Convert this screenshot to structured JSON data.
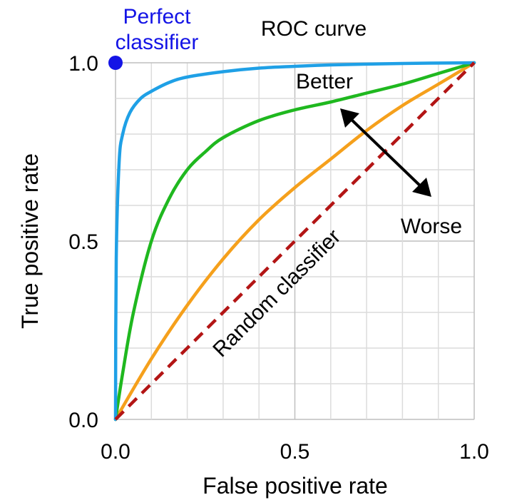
{
  "chart_data": {
    "type": "line",
    "title": "ROC curve",
    "xlabel": "False positive rate",
    "ylabel": "True positive rate",
    "xlim": [
      0,
      1
    ],
    "ylim": [
      0,
      1
    ],
    "xticks": [
      "0.0",
      "0.5",
      "1.0"
    ],
    "yticks": [
      "0.0",
      "0.5",
      "1.0"
    ],
    "grid": true,
    "grid_step": 0.1,
    "series": [
      {
        "key": "excellent",
        "color": "#1fa0e6",
        "x": [
          0,
          0.002,
          0.01,
          0.02,
          0.04,
          0.07,
          0.1,
          0.15,
          0.2,
          0.3,
          0.4,
          0.5,
          0.6,
          0.8,
          1.0
        ],
        "y": [
          0,
          0.45,
          0.72,
          0.8,
          0.86,
          0.9,
          0.92,
          0.945,
          0.96,
          0.975,
          0.985,
          0.99,
          0.994,
          0.998,
          1.0
        ]
      },
      {
        "key": "good",
        "color": "#1fb81f",
        "x": [
          0,
          0.02,
          0.05,
          0.1,
          0.15,
          0.2,
          0.25,
          0.3,
          0.4,
          0.5,
          0.6,
          0.7,
          0.8,
          0.9,
          1.0
        ],
        "y": [
          0,
          0.13,
          0.3,
          0.5,
          0.62,
          0.7,
          0.75,
          0.79,
          0.838,
          0.868,
          0.89,
          0.915,
          0.94,
          0.97,
          1.0
        ]
      },
      {
        "key": "fair",
        "color": "#f5a01c",
        "x": [
          0,
          0.1,
          0.2,
          0.3,
          0.4,
          0.5,
          0.6,
          0.7,
          0.8,
          0.9,
          1.0
        ],
        "y": [
          0,
          0.17,
          0.32,
          0.45,
          0.56,
          0.65,
          0.73,
          0.81,
          0.88,
          0.94,
          1.0
        ]
      },
      {
        "key": "random",
        "color": "#b31515",
        "dashed": true,
        "x": [
          0,
          1
        ],
        "y": [
          0,
          1
        ]
      }
    ],
    "perfect_point": {
      "x": 0,
      "y": 1,
      "color": "#1414e6"
    },
    "annotations": {
      "perfect": "Perfect\nclassifier",
      "better": "Better",
      "worse": "Worse",
      "random": "Random classifier"
    }
  }
}
